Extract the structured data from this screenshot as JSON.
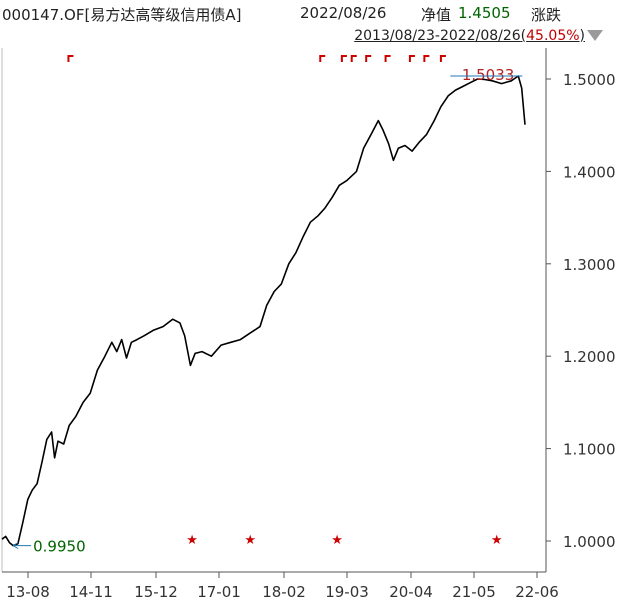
{
  "header": {
    "fund_title": "000147.OF[易方达高等级信用债A]",
    "date": "2022/08/26",
    "nav_label": "净值",
    "nav_value": "1.4505",
    "change_label": "涨跌"
  },
  "range": {
    "text": "2013/08/23-2022/08/26",
    "pct_open": "(",
    "pct": "45.05%",
    "pct_close": ")"
  },
  "icons": {
    "dropdown": "triangle-down-icon"
  },
  "colors": {
    "line": "#000000",
    "axis": "#555555",
    "marker_red": "#cc0000",
    "label_red": "#b22222",
    "label_green": "#006400",
    "nav_green": "#006400"
  },
  "chart_data": {
    "type": "line",
    "title": "",
    "xlabel": "",
    "ylabel": "",
    "x_tick_labels": [
      "13-08",
      "14-11",
      "15-12",
      "17-01",
      "18-02",
      "19-03",
      "20-04",
      "21-05",
      "22-06"
    ],
    "y_tick_labels": [
      "1.5000",
      "1.4000",
      "1.3000",
      "1.2000",
      "1.1000",
      "1.0000"
    ],
    "y_ticks": [
      1.5,
      1.4,
      1.3,
      1.2,
      1.1,
      1.0
    ],
    "ylim": [
      0.98,
      1.53
    ],
    "xlim": [
      "2013-08-23",
      "2022-08-26"
    ],
    "grid": false,
    "series": [
      {
        "values": [
          [
            "2013-08-23",
            1.002
          ],
          [
            "2013-09-15",
            1.005
          ],
          [
            "2013-10-10",
            0.998
          ],
          [
            "2013-11-01",
            0.995
          ],
          [
            "2013-12-01",
            0.997
          ],
          [
            "2014-01-01",
            1.02
          ],
          [
            "2014-02-01",
            1.045
          ],
          [
            "2014-03-01",
            1.055
          ],
          [
            "2014-04-01",
            1.062
          ],
          [
            "2014-05-01",
            1.085
          ],
          [
            "2014-06-01",
            1.11
          ],
          [
            "2014-07-01",
            1.118
          ],
          [
            "2014-07-20",
            1.09
          ],
          [
            "2014-08-10",
            1.108
          ],
          [
            "2014-09-15",
            1.105
          ],
          [
            "2014-10-20",
            1.125
          ],
          [
            "2014-12-01",
            1.135
          ],
          [
            "2015-01-15",
            1.15
          ],
          [
            "2015-03-01",
            1.16
          ],
          [
            "2015-04-15",
            1.185
          ],
          [
            "2015-06-01",
            1.2
          ],
          [
            "2015-07-15",
            1.215
          ],
          [
            "2015-08-15",
            1.205
          ],
          [
            "2015-09-15",
            1.218
          ],
          [
            "2015-10-15",
            1.198
          ],
          [
            "2015-11-15",
            1.215
          ],
          [
            "2015-12-20",
            1.218
          ],
          [
            "2016-02-01",
            1.222
          ],
          [
            "2016-04-01",
            1.228
          ],
          [
            "2016-06-01",
            1.232
          ],
          [
            "2016-08-01",
            1.24
          ],
          [
            "2016-09-15",
            1.236
          ],
          [
            "2016-10-15",
            1.222
          ],
          [
            "2016-11-20",
            1.19
          ],
          [
            "2016-12-20",
            1.203
          ],
          [
            "2017-02-01",
            1.205
          ],
          [
            "2017-04-01",
            1.2
          ],
          [
            "2017-06-01",
            1.212
          ],
          [
            "2017-08-01",
            1.215
          ],
          [
            "2017-10-01",
            1.218
          ],
          [
            "2017-12-01",
            1.225
          ],
          [
            "2018-02-01",
            1.232
          ],
          [
            "2018-03-15",
            1.255
          ],
          [
            "2018-05-01",
            1.27
          ],
          [
            "2018-06-15",
            1.278
          ],
          [
            "2018-08-01",
            1.3
          ],
          [
            "2018-09-15",
            1.312
          ],
          [
            "2018-11-01",
            1.33
          ],
          [
            "2018-12-15",
            1.345
          ],
          [
            "2019-02-01",
            1.352
          ],
          [
            "2019-03-15",
            1.36
          ],
          [
            "2019-05-01",
            1.372
          ],
          [
            "2019-06-15",
            1.385
          ],
          [
            "2019-08-01",
            1.39
          ],
          [
            "2019-10-01",
            1.4
          ],
          [
            "2019-11-15",
            1.425
          ],
          [
            "2020-01-01",
            1.44
          ],
          [
            "2020-02-15",
            1.455
          ],
          [
            "2020-03-15",
            1.445
          ],
          [
            "2020-04-20",
            1.43
          ],
          [
            "2020-05-20",
            1.412
          ],
          [
            "2020-06-20",
            1.425
          ],
          [
            "2020-08-01",
            1.428
          ],
          [
            "2020-09-15",
            1.422
          ],
          [
            "2020-11-01",
            1.432
          ],
          [
            "2020-12-15",
            1.44
          ],
          [
            "2021-02-01",
            1.455
          ],
          [
            "2021-03-15",
            1.47
          ],
          [
            "2021-05-01",
            1.482
          ],
          [
            "2021-06-15",
            1.488
          ],
          [
            "2021-08-01",
            1.492
          ],
          [
            "2021-09-15",
            1.496
          ],
          [
            "2021-11-01",
            1.5
          ],
          [
            "2021-12-15",
            1.4995
          ],
          [
            "2022-02-01",
            1.498
          ],
          [
            "2022-04-01",
            1.495
          ],
          [
            "2022-06-01",
            1.498
          ],
          [
            "2022-07-15",
            1.5033
          ],
          [
            "2022-08-05",
            1.49
          ],
          [
            "2022-08-26",
            1.4505
          ]
        ]
      }
    ],
    "annotations": {
      "max": {
        "label": "1.5033",
        "date": "2022-07-15",
        "value": 1.5033
      },
      "min": {
        "label": "0.9950",
        "date": "2013-11-01",
        "value": 0.995
      }
    },
    "dividend_markers": [
      "2014-10-15",
      "2019-02-15",
      "2019-07-01",
      "2019-09-01",
      "2019-12-01",
      "2020-04-01",
      "2020-09-01",
      "2020-12-01",
      "2021-03-15"
    ],
    "star_markers": [
      "2016-12-01",
      "2017-12-01",
      "2019-06-01",
      "2022-03-01"
    ]
  }
}
